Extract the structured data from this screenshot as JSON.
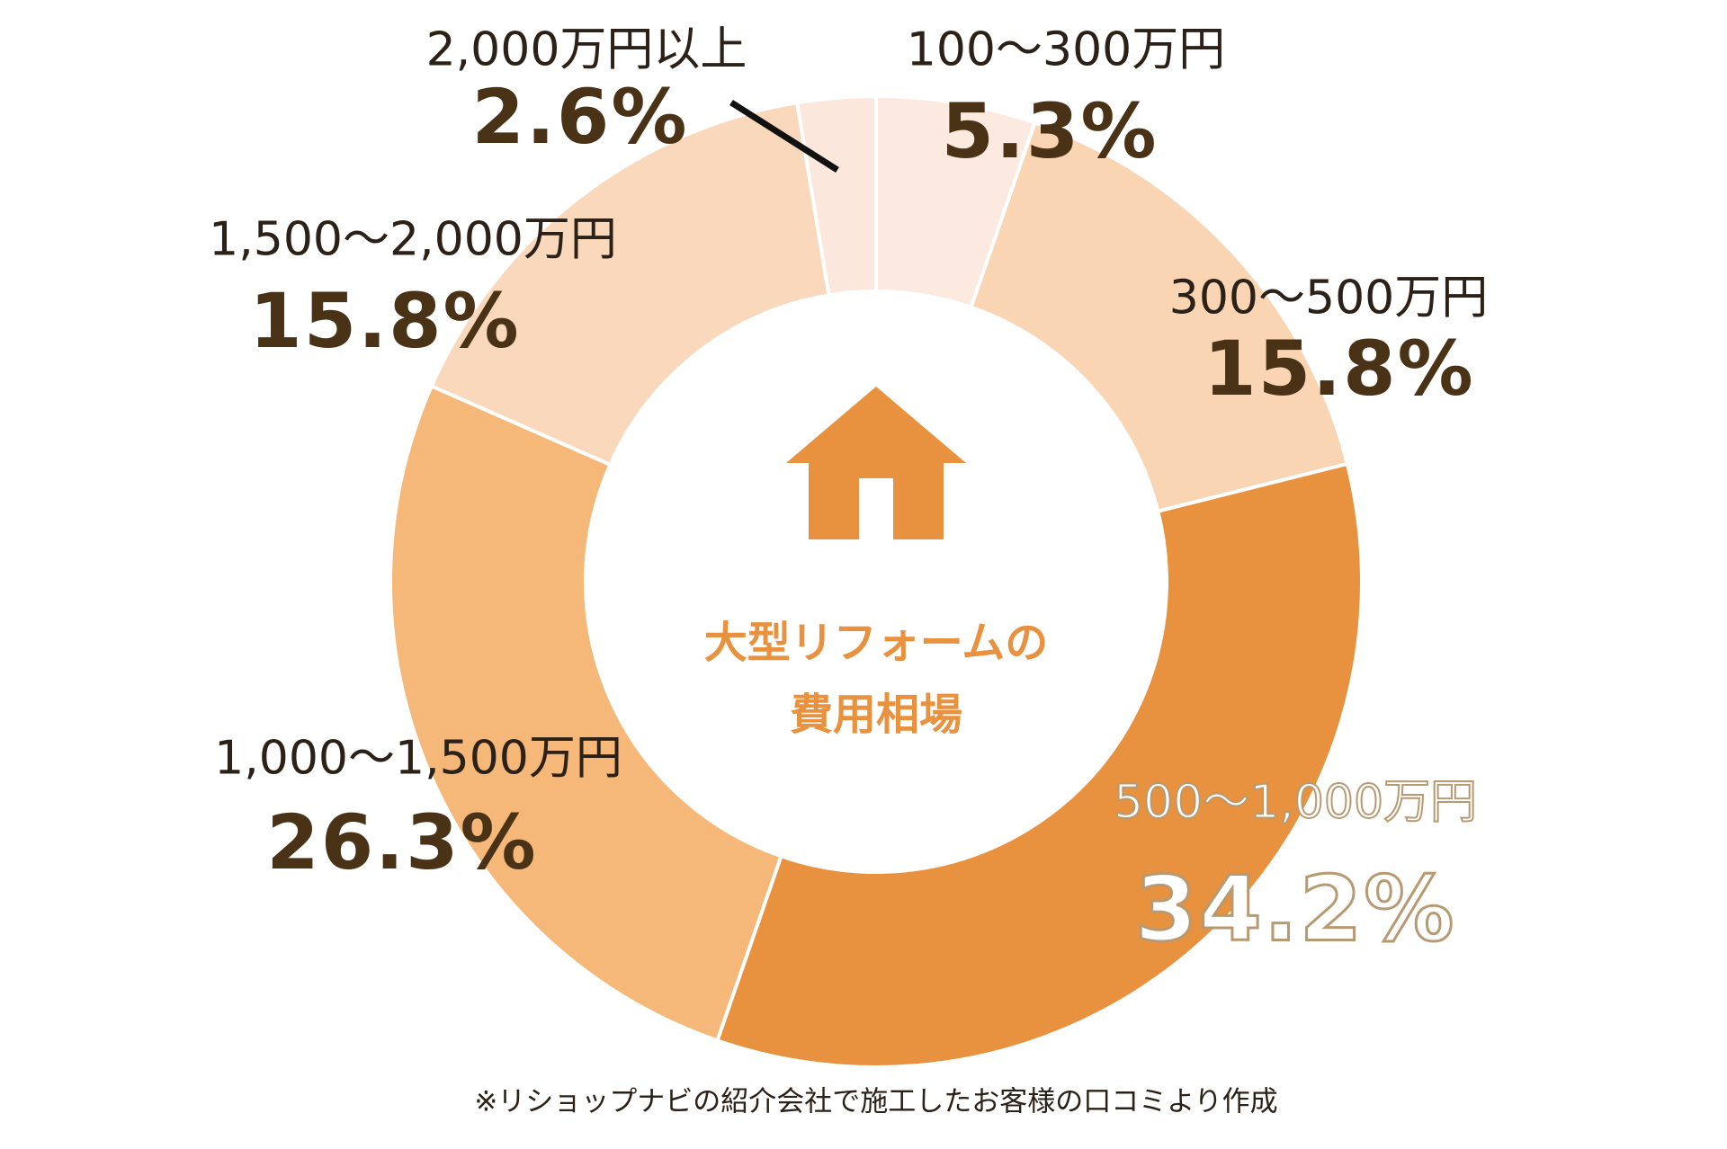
{
  "chart_data": {
    "type": "pie",
    "donut": true,
    "title": "大型リフォームの費用相場",
    "categories": [
      "100～300万円",
      "300～500万円",
      "500～1,000万円",
      "1,000～1,500万円",
      "1,500～2,000万円",
      "2,000万円以上"
    ],
    "values": [
      5.3,
      15.8,
      34.2,
      26.3,
      15.8,
      2.6
    ],
    "value_labels": [
      "5.3%",
      "15.8%",
      "34.2%",
      "26.3%",
      "15.8%",
      "2.6%"
    ],
    "colors": [
      "#fce9df",
      "#f9d5b3",
      "#e8913f",
      "#f6b878",
      "#f9d8bb",
      "#fce7dc"
    ],
    "start": "top",
    "direction": "clockwise",
    "highlighted": "500～1,000万円",
    "center_icon": "house-icon",
    "footnote": "※リショップナビの紹介会社で施工したお客様の口コミより作成"
  },
  "center": {
    "line1": "大型リフォームの",
    "line2": "費用相場"
  }
}
